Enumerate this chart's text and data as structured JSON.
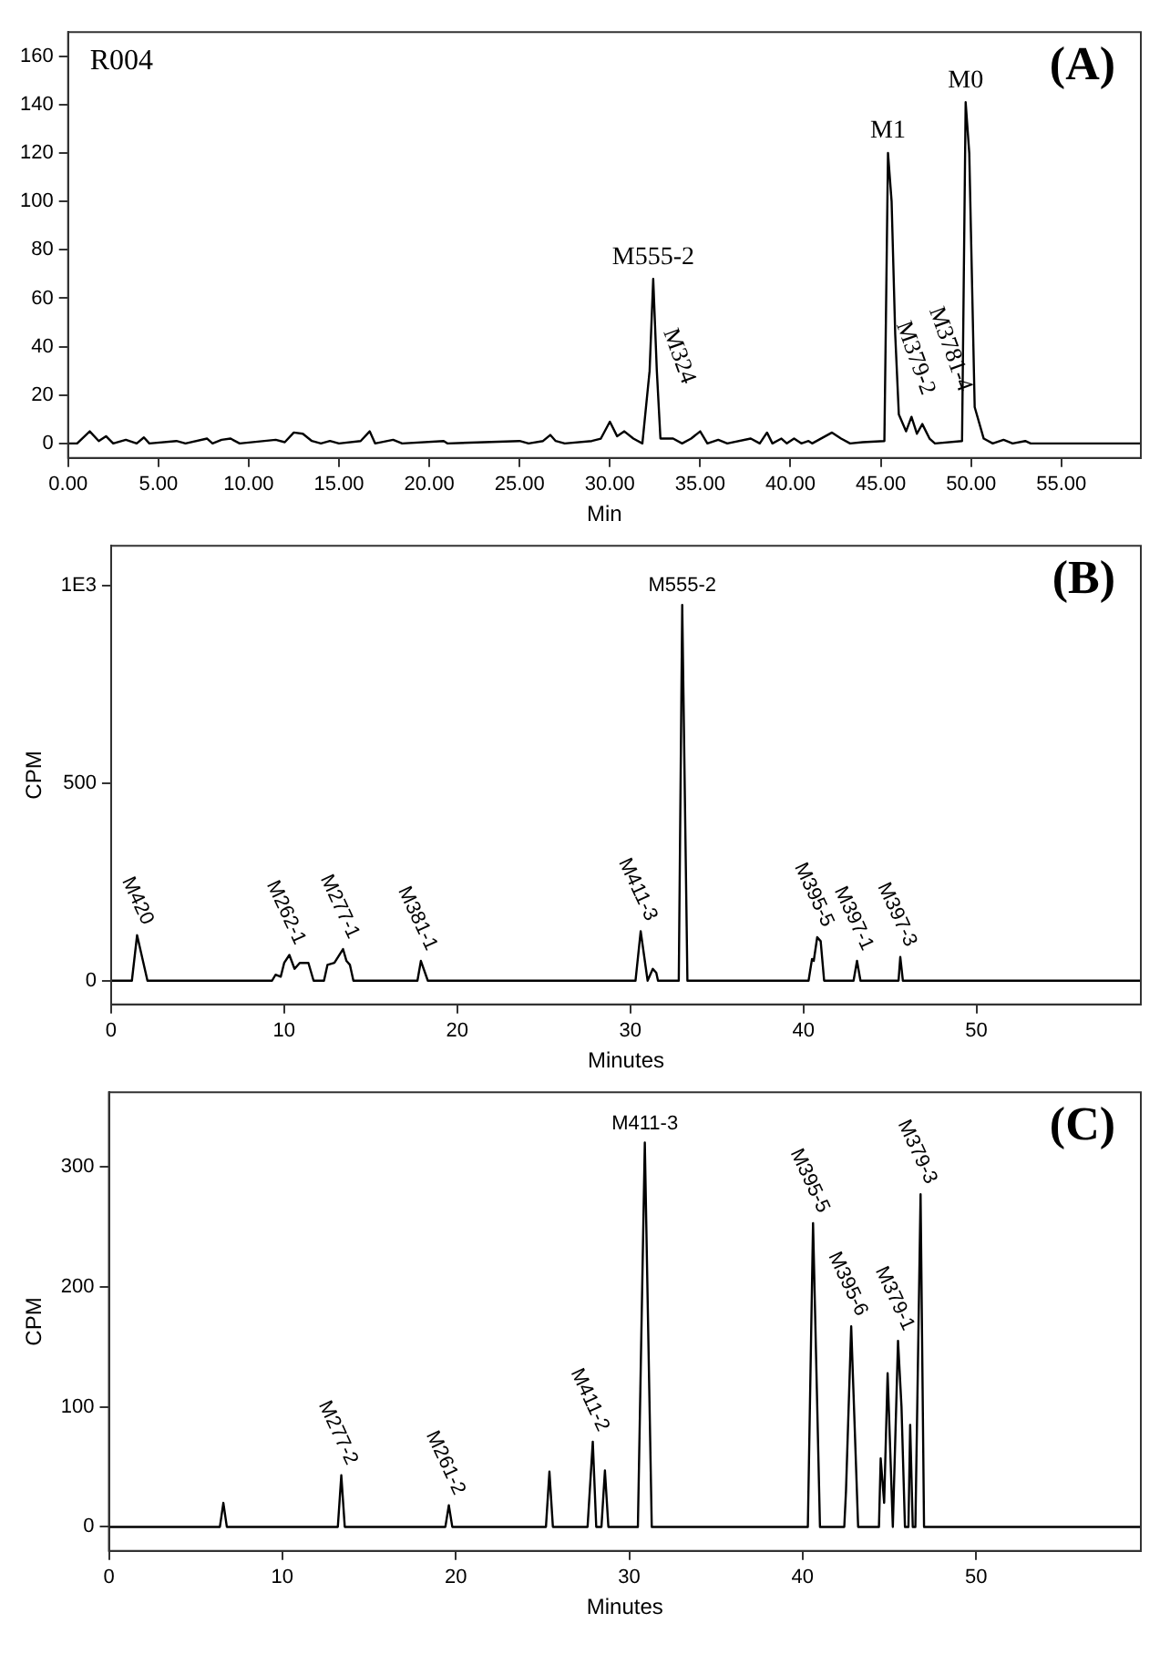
{
  "chart_data": [
    {
      "type": "line",
      "xlabel": "Min",
      "xlim": [
        0,
        59.4
      ],
      "ylim": [
        -6,
        170
      ],
      "xticks": [
        {
          "value": 0,
          "label": "0.00"
        },
        {
          "value": 5,
          "label": "5.00"
        },
        {
          "value": 10,
          "label": "10.00"
        },
        {
          "value": 15,
          "label": "15.00"
        },
        {
          "value": 20,
          "label": "20.00"
        },
        {
          "value": 25,
          "label": "25.00"
        },
        {
          "value": 30,
          "label": "30.00"
        },
        {
          "value": 35,
          "label": "35.00"
        },
        {
          "value": 40,
          "label": "40.00"
        },
        {
          "value": 45,
          "label": "45.00"
        },
        {
          "value": 50,
          "label": "50.00"
        },
        {
          "value": 55,
          "label": "55.00"
        }
      ],
      "yticks": [
        0,
        20,
        40,
        60,
        80,
        100,
        120,
        140,
        160
      ],
      "legend": false,
      "marker": "none",
      "line_style": "solid",
      "series": [
        {
          "color": "#000000",
          "x": [
            0,
            0.5,
            1.2,
            1.7,
            2.1,
            2.5,
            3.2,
            3.8,
            4.2,
            4.5,
            6,
            6.5,
            7.7,
            8,
            8.5,
            9,
            9.5,
            11.5,
            12,
            12.5,
            13,
            13.5,
            14,
            14.5,
            15,
            16.2,
            16.7,
            17,
            18,
            18.5,
            20.8,
            21,
            25,
            25.5,
            26.3,
            26.7,
            27,
            27.5,
            29,
            29.5,
            30,
            30.4,
            30.8,
            31.3,
            31.8,
            32.2,
            32.4,
            32.6,
            32.8,
            33.5,
            34,
            34.5,
            35,
            35.4,
            36,
            36.5,
            37.8,
            38.3,
            38.7,
            39,
            39.5,
            39.8,
            40.2,
            40.6,
            41,
            41.2,
            42.3,
            42.8,
            43.3,
            44,
            45.2,
            45.4,
            45.6,
            45.8,
            46,
            46.4,
            46.7,
            47,
            47.3,
            47.7,
            48,
            49.5,
            49.7,
            49.9,
            50.2,
            50.7,
            51.2,
            51.8,
            52.3,
            53,
            53.3,
            59.4
          ],
          "values": [
            0,
            0,
            5,
            1,
            3,
            0,
            1.5,
            0,
            2.5,
            0,
            1,
            0,
            2,
            0,
            1.5,
            2,
            0,
            1.5,
            0.5,
            4.5,
            4,
            1,
            0,
            1,
            0,
            1,
            5,
            0,
            1.5,
            0,
            1,
            0,
            1,
            0,
            1,
            3.5,
            1,
            0,
            1,
            2,
            9,
            3,
            5,
            2,
            0,
            30,
            68,
            30,
            2,
            2,
            0,
            2,
            5,
            0,
            1.5,
            0,
            2,
            0,
            4.5,
            0,
            2,
            0,
            2,
            0,
            1,
            0,
            4.5,
            2,
            0,
            0.5,
            1,
            120,
            100,
            45,
            12,
            5,
            11,
            4,
            8,
            2,
            0,
            1,
            141,
            120,
            15,
            2,
            0,
            1.5,
            0,
            1,
            0,
            0
          ]
        }
      ],
      "annotations": [
        "(A)",
        "R004",
        {
          "text": "M555-2",
          "x": 32.4,
          "y": 68
        },
        {
          "text": "M324",
          "x": 33.5,
          "y": 2
        },
        {
          "text": "M1",
          "x": 45.4,
          "y": 120
        },
        {
          "text": "M379-2",
          "x": 46.4,
          "y": 5
        },
        {
          "text": "M3781-4",
          "x": 46.7,
          "y": 11
        },
        {
          "text": "M0",
          "x": 49.7,
          "y": 141
        }
      ]
    },
    {
      "type": "line",
      "xlabel": "Minutes",
      "ylabel": "CPM",
      "xlim": [
        0,
        59.5
      ],
      "ylim": [
        -60,
        1100
      ],
      "xticks": [
        0,
        10,
        20,
        30,
        40,
        50
      ],
      "yticks": [
        0,
        500,
        {
          "value": 1000,
          "label": "1E3"
        }
      ],
      "legend": false,
      "marker": "none",
      "line_style": "solid",
      "series": [
        {
          "color": "#000000",
          "x": [
            0,
            1.2,
            1.5,
            2.1,
            9.3,
            9.5,
            9.8,
            10,
            10.3,
            10.6,
            10.9,
            11.4,
            11.7,
            12.3,
            12.5,
            12.9,
            13.4,
            13.6,
            13.8,
            14,
            17.7,
            17.9,
            18.3,
            30.3,
            30.6,
            31,
            31.3,
            31.5,
            31.6,
            32.8,
            33,
            33.3,
            40.3,
            40.5,
            40.6,
            40.8,
            41,
            41.2,
            42.9,
            43.1,
            43.3,
            45.5,
            45.6,
            45.75,
            59.5
          ],
          "values": [
            0,
            0,
            115,
            0,
            0,
            15,
            10,
            45,
            65,
            30,
            45,
            45,
            0,
            0,
            40,
            45,
            80,
            50,
            40,
            0,
            0,
            50,
            0,
            0,
            125,
            0,
            30,
            20,
            0,
            0,
            950,
            0,
            0,
            55,
            50,
            110,
            100,
            0,
            0,
            50,
            0,
            0,
            60,
            0,
            0
          ]
        }
      ],
      "annotations": [
        "(B)",
        {
          "text": "M420",
          "x": 1.5,
          "y": 115
        },
        {
          "text": "M262-1",
          "x": 10.3,
          "y": 65
        },
        {
          "text": "M277-1",
          "x": 13.4,
          "y": 80
        },
        {
          "text": "M381-1",
          "x": 17.9,
          "y": 50
        },
        {
          "text": "M411-3",
          "x": 30.6,
          "y": 125
        },
        {
          "text": "M555-2",
          "x": 33,
          "y": 950
        },
        {
          "text": "M395-5",
          "x": 40.8,
          "y": 110
        },
        {
          "text": "M397-1",
          "x": 43.1,
          "y": 50
        },
        {
          "text": "M397-3",
          "x": 45.6,
          "y": 60
        }
      ]
    },
    {
      "type": "line",
      "xlabel": "Minutes",
      "ylabel": "CPM",
      "xlim": [
        0,
        59.5
      ],
      "ylim": [
        -20,
        362
      ],
      "xticks": [
        0,
        10,
        20,
        30,
        40,
        50
      ],
      "yticks": [
        0,
        100,
        200,
        300
      ],
      "legend": false,
      "marker": "none",
      "line_style": "solid",
      "series": [
        {
          "color": "#000000",
          "x": [
            0,
            6.4,
            6.6,
            6.8,
            13.2,
            13.4,
            13.6,
            19.4,
            19.6,
            19.8,
            25.2,
            25.4,
            25.6,
            27.6,
            27.9,
            28.1,
            28.4,
            28.6,
            28.8,
            30.5,
            30.9,
            31.3,
            40.3,
            40.6,
            41,
            42.4,
            42.5,
            42.8,
            43.2,
            44.4,
            44.5,
            44.7,
            44.9,
            45.2,
            45.5,
            45.7,
            45.9,
            46.1,
            46.2,
            46.35,
            46.5,
            46.8,
            47,
            59.5
          ],
          "values": [
            0,
            0,
            20,
            0,
            0,
            43,
            0,
            0,
            18,
            0,
            0,
            46,
            0,
            0,
            71,
            0,
            0,
            47,
            0,
            0,
            320,
            0,
            0,
            253,
            0,
            0,
            30,
            167,
            0,
            0,
            57,
            20,
            128,
            0,
            155,
            100,
            0,
            0,
            85,
            0,
            0,
            277,
            0,
            0
          ]
        }
      ],
      "annotations": [
        "(C)",
        {
          "text": "M277-2",
          "x": 13.4,
          "y": 43
        },
        {
          "text": "M261-2",
          "x": 19.6,
          "y": 18
        },
        {
          "text": "M411-2",
          "x": 27.9,
          "y": 71
        },
        {
          "text": "M411-3",
          "x": 30.9,
          "y": 320
        },
        {
          "text": "M395-5",
          "x": 40.6,
          "y": 253
        },
        {
          "text": "M395-6",
          "x": 42.8,
          "y": 167
        },
        {
          "text": "M379-1",
          "x": 45.5,
          "y": 155
        },
        {
          "text": "M379-3",
          "x": 46.8,
          "y": 277
        }
      ]
    }
  ]
}
